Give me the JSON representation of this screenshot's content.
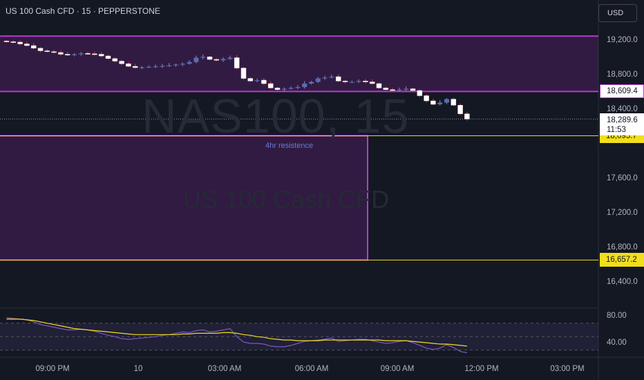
{
  "header": {
    "title": "US 100 Cash CFD · 15 · PEPPERSTONE",
    "currency_button": "USD"
  },
  "watermark": {
    "symbol": "NAS100, 15",
    "description": "US 100 Cash CFD"
  },
  "chart_data": {
    "type": "candlestick",
    "price_axis_ticks": [
      "19,200.0",
      "18,800.0",
      "18,400.0",
      "17,600.0",
      "17,200.0",
      "16,800.0",
      "16,400.0"
    ],
    "price_axis_values": [
      19200,
      18800,
      18400,
      17600,
      17200,
      16800,
      16400
    ],
    "time_axis_ticks": [
      "09:00 PM",
      "10",
      "03:00 AM",
      "06:00 AM",
      "09:00 AM",
      "12:00 PM",
      "03:00 PM"
    ],
    "current_price": "18,289.6",
    "countdown": "11:53",
    "price_labels": [
      {
        "text": "18,609.4",
        "value": 18609.4,
        "style": "purple"
      },
      {
        "text": "18,095.7",
        "value": 18095.7,
        "style": "yellow"
      },
      {
        "text": "16,657.2",
        "value": 16657.2,
        "style": "yellow"
      }
    ],
    "zones": [
      {
        "type": "upper-band",
        "top": 19250,
        "bottom": 18609.4
      },
      {
        "type": "rectangle",
        "label": "4hr resistence",
        "top": 18095.7,
        "bottom": 16657.2
      }
    ],
    "close_series": [
      19185,
      19180,
      19160,
      19140,
      19110,
      19080,
      19070,
      19060,
      19040,
      19030,
      19040,
      19050,
      19045,
      19040,
      19020,
      18990,
      18960,
      18930,
      18900,
      18885,
      18890,
      18895,
      18900,
      18905,
      18910,
      18920,
      18930,
      18950,
      19000,
      19010,
      18980,
      18970,
      18985,
      19000,
      18880,
      18760,
      18730,
      18740,
      18700,
      18650,
      18630,
      18640,
      18650,
      18660,
      18700,
      18720,
      18760,
      18770,
      18780,
      18730,
      18720,
      18720,
      18730,
      18720,
      18700,
      18650,
      18630,
      18620,
      18630,
      18640,
      18620,
      18560,
      18500,
      18460,
      18480,
      18520,
      18450,
      18350,
      18289.6
    ],
    "rsi": {
      "ticks": [
        "80.00",
        "40.00"
      ],
      "values": [
        80,
        40
      ],
      "range": [
        30,
        85
      ],
      "rsi_series": [
        78,
        77,
        76,
        75,
        72,
        68,
        66,
        64,
        62,
        60,
        60,
        61,
        60,
        58,
        55,
        52,
        50,
        47,
        46,
        47,
        48,
        49,
        50,
        52,
        53,
        55,
        57,
        56,
        59,
        60,
        57,
        58,
        60,
        62,
        50,
        42,
        40,
        40,
        39,
        36,
        35,
        35,
        37,
        40,
        43,
        44,
        45,
        46,
        48,
        43,
        44,
        45,
        46,
        46,
        44,
        42,
        40,
        41,
        43,
        44,
        41,
        37,
        33,
        31,
        33,
        38,
        34,
        28,
        26
      ],
      "ma_series": [
        76,
        76,
        76,
        75,
        74,
        72,
        70,
        68,
        66,
        64,
        62,
        61,
        60,
        59,
        58,
        57,
        56,
        55,
        54,
        53,
        53,
        53,
        53,
        53,
        53,
        53,
        54,
        54,
        55,
        55,
        55,
        55,
        56,
        56,
        55,
        53,
        52,
        50,
        49,
        47,
        46,
        45,
        45,
        44,
        44,
        44,
        44,
        45,
        45,
        45,
        45,
        45,
        45,
        45,
        45,
        45,
        44,
        44,
        44,
        44,
        43,
        42,
        41,
        40,
        39,
        39,
        38,
        37,
        36
      ]
    }
  }
}
